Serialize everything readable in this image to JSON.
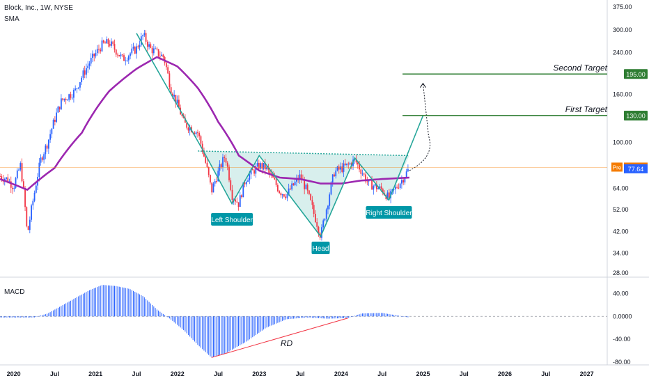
{
  "header": {
    "title": "Block, Inc., 1W, NYSE",
    "indicator": "SMA",
    "macd_label": "MACD"
  },
  "colors": {
    "up": "#2962ff",
    "down": "#f23645",
    "sma": "#9c27b0",
    "pattern": "#26a69a",
    "target": "#2e7d32",
    "macd": "#2962ff",
    "rd": "#f23645",
    "pre": "#f57c00",
    "last": "#2962ff"
  },
  "price_axis": {
    "ticks": [
      "375.00",
      "300.00",
      "240.00",
      "195.00",
      "160.00",
      "130.00",
      "100.00",
      "78.38",
      "77.64",
      "64.00",
      "52.00",
      "42.00",
      "34.00",
      "28.00"
    ]
  },
  "macd_axis": {
    "ticks": [
      "40.00",
      "0.0000",
      "-40.00",
      "-80.00"
    ]
  },
  "time_axis": {
    "ticks": [
      "2020",
      "Jul",
      "2021",
      "Jul",
      "2022",
      "Jul",
      "2023",
      "Jul",
      "2024",
      "Jul",
      "2025",
      "Jul",
      "2026",
      "Jul",
      "2027"
    ]
  },
  "annotations": {
    "second_target": "Second Target",
    "first_target": "First Target",
    "second_target_value": "195.00",
    "first_target_value": "130.00",
    "pre_label": "Pre",
    "pre_value": "78.38",
    "last_value": "77.64",
    "left_shoulder": "Left Shoulder",
    "head": "Head",
    "right_shoulder": "Right Shoulder",
    "rd": "RD"
  },
  "chart_data": {
    "type": "candlestick",
    "symbol": "Block, Inc.",
    "interval": "1W",
    "exchange": "NYSE",
    "y_scale": "log",
    "price_range": [
      28,
      375
    ],
    "x_range": [
      "2019-11",
      "2027-04"
    ],
    "price_path": [
      [
        "2019-11",
        72
      ],
      [
        "2019-12",
        70
      ],
      [
        "2020-01",
        65
      ],
      [
        "2020-02",
        80
      ],
      [
        "2020-03",
        40
      ],
      [
        "2020-04",
        60
      ],
      [
        "2020-05",
        85
      ],
      [
        "2020-06",
        100
      ],
      [
        "2020-08",
        150
      ],
      [
        "2020-10",
        165
      ],
      [
        "2020-12",
        215
      ],
      [
        "2021-02",
        260
      ],
      [
        "2021-03",
        265
      ],
      [
        "2021-05",
        225
      ],
      [
        "2021-07",
        250
      ],
      [
        "2021-08",
        285
      ],
      [
        "2021-09",
        250
      ],
      [
        "2021-11",
        230
      ],
      [
        "2021-12",
        170
      ],
      [
        "2022-02",
        120
      ],
      [
        "2022-04",
        110
      ],
      [
        "2022-05",
        85
      ],
      [
        "2022-06",
        62
      ],
      [
        "2022-07",
        75
      ],
      [
        "2022-08",
        88
      ],
      [
        "2022-09",
        60
      ],
      [
        "2022-10",
        55
      ],
      [
        "2022-11",
        70
      ],
      [
        "2023-01",
        80
      ],
      [
        "2023-02",
        78
      ],
      [
        "2023-04",
        62
      ],
      [
        "2023-05",
        60
      ],
      [
        "2023-07",
        72
      ],
      [
        "2023-08",
        62
      ],
      [
        "2023-09",
        50
      ],
      [
        "2023-10",
        40
      ],
      [
        "2023-11",
        55
      ],
      [
        "2023-12",
        75
      ],
      [
        "2024-02",
        80
      ],
      [
        "2024-03",
        84
      ],
      [
        "2024-05",
        67
      ],
      [
        "2024-07",
        63
      ],
      [
        "2024-08",
        58
      ],
      [
        "2024-10",
        70
      ],
      [
        "2024-11",
        77.64
      ]
    ],
    "sma": [
      [
        "2019-11",
        70
      ],
      [
        "2020-03",
        63
      ],
      [
        "2020-07",
        78
      ],
      [
        "2020-11",
        110
      ],
      [
        "2021-03",
        165
      ],
      [
        "2021-07",
        205
      ],
      [
        "2021-10",
        230
      ],
      [
        "2022-01",
        210
      ],
      [
        "2022-04",
        170
      ],
      [
        "2022-07",
        122
      ],
      [
        "2022-10",
        88
      ],
      [
        "2023-01",
        76
      ],
      [
        "2023-04",
        71
      ],
      [
        "2023-07",
        70
      ],
      [
        "2023-10",
        67
      ],
      [
        "2024-01",
        67
      ],
      [
        "2024-04",
        69
      ],
      [
        "2024-07",
        70
      ],
      [
        "2024-11",
        71
      ]
    ],
    "pattern": {
      "neckline": [
        [
          "2022-04",
          92
        ],
        [
          "2024-11",
          88
        ]
      ],
      "zigzag": [
        [
          "2021-07",
          290
        ],
        [
          "2022-05",
          90
        ],
        [
          "2022-09",
          55
        ],
        [
          "2023-01",
          88
        ],
        [
          "2023-10",
          40
        ],
        [
          "2024-03",
          86
        ],
        [
          "2024-08",
          57
        ],
        [
          "2025-01",
          130
        ]
      ],
      "projection": [
        [
          "2024-11",
          76
        ],
        [
          "2025-01",
          93
        ],
        [
          "2025-01",
          178
        ]
      ],
      "first_target": 130,
      "second_target": 195
    },
    "macd": {
      "range": [
        -80,
        60
      ],
      "points": [
        [
          "2019-11",
          -2
        ],
        [
          "2020-04",
          -2
        ],
        [
          "2020-06",
          5
        ],
        [
          "2020-09",
          25
        ],
        [
          "2020-12",
          45
        ],
        [
          "2021-02",
          55
        ],
        [
          "2021-04",
          53
        ],
        [
          "2021-06",
          48
        ],
        [
          "2021-08",
          35
        ],
        [
          "2021-10",
          12
        ],
        [
          "2021-12",
          -5
        ],
        [
          "2022-02",
          -25
        ],
        [
          "2022-04",
          -50
        ],
        [
          "2022-06",
          -72
        ],
        [
          "2022-08",
          -65
        ],
        [
          "2022-11",
          -45
        ],
        [
          "2023-02",
          -20
        ],
        [
          "2023-05",
          -5
        ],
        [
          "2023-08",
          -2
        ],
        [
          "2023-11",
          -4
        ],
        [
          "2024-02",
          -3
        ],
        [
          "2024-04",
          5
        ],
        [
          "2024-07",
          6
        ],
        [
          "2024-09",
          2
        ],
        [
          "2024-11",
          -2
        ]
      ],
      "divergence_line": [
        [
          "2022-06",
          -72
        ],
        [
          "2024-02",
          -3
        ]
      ]
    }
  }
}
